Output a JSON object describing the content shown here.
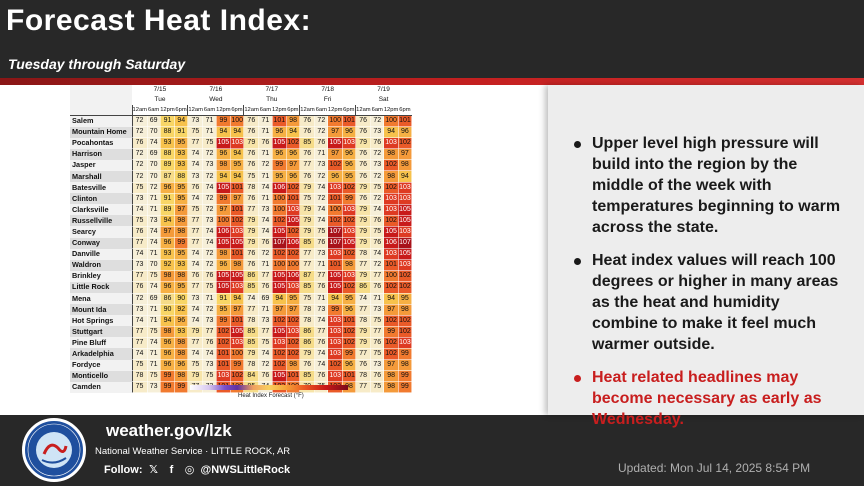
{
  "header": {
    "title": "Forecast Heat Index:",
    "subtitle": "Tuesday through Saturday"
  },
  "bullets": [
    {
      "text": "Upper level high pressure will build into the region by the middle of the week with temperatures beginning to warm across the state.",
      "color": "#1a1a1a"
    },
    {
      "text": "Heat index values will reach 100 degrees or higher in many areas as the heat and humidity combine to make it feel much warmer outside.",
      "color": "#1a1a1a"
    },
    {
      "text": "Heat related headlines may become necessary as early as Wednesday.",
      "color": "#c81e1e"
    }
  ],
  "table": {
    "days": [
      {
        "date": "7/15",
        "day": "Tue"
      },
      {
        "date": "7/16",
        "day": "Wed"
      },
      {
        "date": "7/17",
        "day": "Thu"
      },
      {
        "date": "7/18",
        "day": "Fri"
      },
      {
        "date": "7/19",
        "day": "Sat"
      }
    ],
    "hours": [
      "12am",
      "6am",
      "12pm",
      "6pm"
    ],
    "legend_label": "Heat Index Forecast (°F)",
    "rows": [
      {
        "name": "Salem",
        "values": [
          72,
          69,
          91,
          94,
          73,
          71,
          99,
          100,
          76,
          71,
          101,
          98,
          76,
          72,
          100,
          101,
          76,
          72,
          100,
          101
        ]
      },
      {
        "name": "Mountain Home",
        "values": [
          72,
          70,
          88,
          91,
          75,
          71,
          94,
          94,
          76,
          71,
          96,
          94,
          76,
          72,
          97,
          96,
          76,
          73,
          94,
          96
        ]
      },
      {
        "name": "Pocahontas",
        "values": [
          76,
          74,
          93,
          95,
          77,
          75,
          105,
          103,
          79,
          76,
          105,
          102,
          85,
          76,
          105,
          103,
          79,
          76,
          103,
          102
        ]
      },
      {
        "name": "Harrison",
        "values": [
          72,
          69,
          88,
          93,
          74,
          72,
          96,
          94,
          76,
          71,
          96,
          96,
          76,
          71,
          97,
          96,
          76,
          72,
          98,
          97
        ]
      },
      {
        "name": "Jasper",
        "values": [
          72,
          70,
          89,
          93,
          74,
          73,
          98,
          95,
          76,
          72,
          99,
          97,
          77,
          73,
          102,
          96,
          76,
          73,
          102,
          98
        ]
      },
      {
        "name": "Marshall",
        "values": [
          72,
          70,
          87,
          88,
          73,
          72,
          94,
          94,
          75,
          71,
          95,
          96,
          76,
          72,
          96,
          95,
          76,
          72,
          98,
          94
        ]
      },
      {
        "name": "Batesville",
        "values": [
          75,
          72,
          96,
          95,
          76,
          74,
          105,
          101,
          78,
          74,
          106,
          102,
          79,
          74,
          103,
          102,
          79,
          75,
          102,
          103
        ]
      },
      {
        "name": "Clinton",
        "values": [
          73,
          71,
          91,
          95,
          74,
          72,
          99,
          97,
          76,
          71,
          100,
          101,
          75,
          72,
          101,
          99,
          76,
          72,
          103,
          103
        ]
      },
      {
        "name": "Clarksville",
        "values": [
          74,
          71,
          89,
          97,
          75,
          72,
          97,
          101,
          77,
          73,
          100,
          103,
          79,
          74,
          100,
          103,
          79,
          74,
          103,
          105
        ]
      },
      {
        "name": "Russellville",
        "values": [
          75,
          73,
          94,
          98,
          77,
          73,
          100,
          102,
          79,
          74,
          102,
          105,
          79,
          74,
          102,
          102,
          79,
          76,
          102,
          105
        ]
      },
      {
        "name": "Searcy",
        "values": [
          76,
          74,
          97,
          98,
          77,
          74,
          106,
          103,
          79,
          74,
          105,
          102,
          79,
          75,
          107,
          103,
          79,
          75,
          105,
          103
        ]
      },
      {
        "name": "Conway",
        "values": [
          77,
          74,
          96,
          99,
          77,
          74,
          105,
          105,
          79,
          76,
          107,
          106,
          85,
          76,
          107,
          105,
          79,
          76,
          106,
          107
        ]
      },
      {
        "name": "Danville",
        "values": [
          74,
          71,
          93,
          95,
          74,
          72,
          98,
          101,
          76,
          72,
          102,
          102,
          77,
          73,
          103,
          102,
          78,
          74,
          103,
          105
        ]
      },
      {
        "name": "Waldron",
        "values": [
          73,
          70,
          92,
          93,
          74,
          72,
          96,
          98,
          76,
          71,
          100,
          100,
          77,
          71,
          101,
          98,
          77,
          72,
          101,
          103
        ]
      },
      {
        "name": "Brinkley",
        "values": [
          77,
          75,
          98,
          98,
          76,
          76,
          105,
          105,
          86,
          77,
          105,
          106,
          87,
          77,
          105,
          103,
          79,
          77,
          100,
          102
        ]
      },
      {
        "name": "Little Rock",
        "values": [
          76,
          74,
          96,
          95,
          77,
          75,
          105,
          103,
          85,
          76,
          105,
          103,
          85,
          76,
          105,
          102,
          86,
          76,
          102,
          102
        ]
      },
      {
        "name": "Mena",
        "values": [
          72,
          69,
          86,
          90,
          73,
          71,
          91,
          94,
          74,
          69,
          94,
          95,
          75,
          71,
          94,
          95,
          74,
          71,
          94,
          95
        ]
      },
      {
        "name": "Mount Ida",
        "values": [
          73,
          71,
          90,
          92,
          74,
          72,
          95,
          97,
          77,
          71,
          97,
          97,
          78,
          73,
          99,
          96,
          77,
          73,
          97,
          98
        ]
      },
      {
        "name": "Hot Springs",
        "values": [
          74,
          71,
          94,
          96,
          74,
          73,
          99,
          101,
          78,
          73,
          102,
          102,
          78,
          74,
          103,
          101,
          78,
          75,
          102,
          102
        ]
      },
      {
        "name": "Stuttgart",
        "values": [
          77,
          75,
          98,
          93,
          79,
          77,
          102,
          105,
          85,
          77,
          105,
          103,
          86,
          77,
          103,
          102,
          79,
          77,
          99,
          102
        ]
      },
      {
        "name": "Pine Bluff",
        "values": [
          77,
          74,
          96,
          98,
          77,
          76,
          102,
          103,
          85,
          75,
          103,
          102,
          86,
          76,
          103,
          102,
          79,
          76,
          102,
          103
        ]
      },
      {
        "name": "Arkadelphia",
        "values": [
          74,
          71,
          96,
          98,
          74,
          74,
          101,
          100,
          79,
          74,
          102,
          102,
          79,
          74,
          103,
          99,
          77,
          75,
          102,
          99
        ]
      },
      {
        "name": "Fordyce",
        "values": [
          75,
          71,
          96,
          96,
          75,
          73,
          101,
          99,
          78,
          72,
          102,
          98,
          76,
          74,
          102,
          96,
          76,
          73,
          97,
          98
        ]
      },
      {
        "name": "Monticello",
        "values": [
          78,
          75,
          99,
          98,
          79,
          75,
          103,
          102,
          84,
          76,
          105,
          101,
          85,
          76,
          103,
          101,
          78,
          76,
          98,
          99
        ]
      },
      {
        "name": "Camden",
        "values": [
          75,
          73,
          99,
          99,
          77,
          73,
          101,
          100,
          85,
          74,
          102,
          100,
          79,
          75,
          102,
          98,
          77,
          75,
          98,
          99
        ]
      }
    ]
  },
  "footer": {
    "url": "weather.gov/lzk",
    "agency": "National Weather Service · LITTLE ROCK, AR",
    "follow_label": "Follow:",
    "handle": "@NWSLittleRock",
    "updated": "Updated: Mon Jul 14, 2025 8:54 PM",
    "logo_text": "NATIONAL WEATHER SERVICE"
  }
}
